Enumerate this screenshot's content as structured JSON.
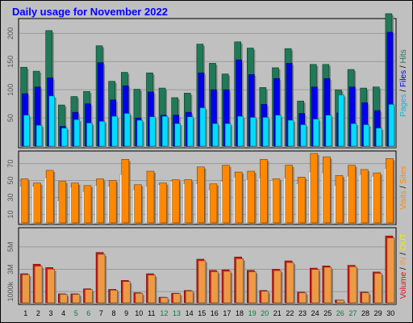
{
  "chart_data": {
    "type": "bar",
    "title": "Daily usage for November 2022",
    "categories": [
      "1",
      "2",
      "3",
      "4",
      "5",
      "6",
      "7",
      "8",
      "9",
      "10",
      "11",
      "12",
      "13",
      "14",
      "15",
      "16",
      "17",
      "18",
      "19",
      "20",
      "21",
      "22",
      "23",
      "24",
      "25",
      "26",
      "27",
      "28",
      "29",
      "30"
    ],
    "weekend_days": [
      "5",
      "6",
      "12",
      "13",
      "19",
      "20",
      "26",
      "27"
    ],
    "colors": {
      "hits": "#1f7a57",
      "files": "#0000ee",
      "pages": "#00ddff",
      "visits": "#ff8800",
      "sites": "#f5f5f5",
      "volume": "#dd1111",
      "in": "#ee9944",
      "out": "#eeee00",
      "weekday_label": "#000000",
      "weekend_label": "#008040"
    },
    "panels": [
      {
        "id": "hits",
        "yticks": [
          50,
          100,
          150,
          200
        ],
        "ylim": [
          0,
          222
        ],
        "side_label": [
          {
            "text": "Pages",
            "color": "#00bcd4"
          },
          {
            "text": " / ",
            "color": "#000000"
          },
          {
            "text": "Files",
            "color": "#0000ee"
          },
          {
            "text": " / ",
            "color": "#000000"
          },
          {
            "text": "Hits",
            "color": "#1f7a57"
          }
        ],
        "series": [
          {
            "name": "Hits",
            "values": [
              140,
              133,
              205,
              73,
              88,
              97,
              178,
              115,
              131,
              101,
              130,
              103,
              86,
              94,
              181,
              147,
              128,
              185,
              174,
              104,
              139,
              173,
              80,
              145,
              145,
              100,
              136,
              103,
              105,
              235
            ]
          },
          {
            "name": "Files",
            "values": [
              93,
              105,
              121,
              35,
              60,
              75,
              148,
              82,
              107,
              50,
              96,
              55,
              55,
              60,
              130,
              100,
              100,
              153,
              127,
              74,
              120,
              147,
              58,
              105,
              120,
              59,
              105,
              77,
              63,
              202
            ]
          },
          {
            "name": "Pages",
            "values": [
              55,
              37,
              89,
              32,
              47,
              41,
              44,
              53,
              58,
              46,
              52,
              53,
              40,
              52,
              68,
              40,
              40,
              53,
              51,
              51,
              55,
              46,
              38,
              48,
              55,
              91,
              40,
              38,
              32,
              74
            ]
          }
        ]
      },
      {
        "id": "visits",
        "yticks": [
          10,
          30,
          50,
          70
        ],
        "ylim": [
          0,
          82
        ],
        "side_label": [
          {
            "text": "Visits",
            "color": "#ff8800"
          },
          {
            "text": " / ",
            "color": "#000000"
          },
          {
            "text": "Sites",
            "color": "#ff8800"
          }
        ],
        "series": [
          {
            "name": "Visits",
            "values": [
              52,
              47,
              62,
              49,
              47,
              44,
              52,
              50,
              75,
              45,
              61,
              47,
              51,
              51,
              66,
              46,
              68,
              60,
              61,
              75,
              52,
              68,
              54,
              82,
              78,
              56,
              68,
              63,
              59,
              76
            ]
          },
          {
            "name": "Sites",
            "values": [
              43,
              43,
              53,
              26,
              42,
              37,
              44,
              43,
              57,
              39,
              43,
              45,
              49,
              46,
              46,
              39,
              49,
              54,
              51,
              53,
              50,
              53,
              46,
              60,
              59,
              44,
              55,
              57,
              55,
              64
            ]
          }
        ]
      },
      {
        "id": "volume",
        "yticks": [
          1000,
          3000,
          5000
        ],
        "ytick_labels": [
          "1000k",
          "3M",
          "5M"
        ],
        "ylim": [
          0,
          6500
        ],
        "side_label": [
          {
            "text": "Volume",
            "color": "#dd1111"
          },
          {
            "text": " / ",
            "color": "#000000"
          },
          {
            "text": "IN",
            "color": "#ee9944"
          },
          {
            "text": " / ",
            "color": "#000000"
          },
          {
            "text": "OUT",
            "color": "#eeee00"
          }
        ],
        "series": [
          {
            "name": "Volume",
            "values": [
              2600,
              3450,
              3150,
              800,
              800,
              1250,
              4500,
              1200,
              2000,
              900,
              2600,
              500,
              850,
              1100,
              3900,
              2900,
              2950,
              4100,
              2900,
              1100,
              3000,
              3750,
              950,
              3100,
              3300,
              250,
              3350,
              950,
              2750,
              5980
            ]
          },
          {
            "name": "IN",
            "values": [
              2520,
              3280,
              3010,
              760,
              760,
              1190,
              4340,
              1130,
              1900,
              850,
              2480,
              470,
              820,
              1050,
              3760,
              2780,
              2820,
              3940,
              2780,
              1030,
              2880,
              3600,
              900,
              2980,
              3180,
              240,
              3230,
              900,
              2640,
              5800
            ]
          }
        ]
      }
    ]
  }
}
